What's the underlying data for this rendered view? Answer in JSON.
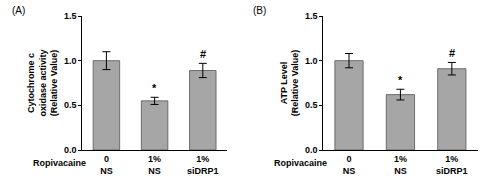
{
  "chart_data": [
    {
      "type": "bar",
      "panel": "(A)",
      "y_label": [
        "Cytochrome c",
        "oxidase activity",
        "(Relative Value)"
      ],
      "category_label": "Ropivacaine",
      "categories": [
        [
          "0",
          "NS"
        ],
        [
          "1%",
          "NS"
        ],
        [
          "1%",
          "siDRP1"
        ]
      ],
      "values": [
        1.0,
        0.55,
        0.89
      ],
      "errors": [
        0.1,
        0.04,
        0.08
      ],
      "annotations": [
        {
          "x": 1,
          "text": "*"
        },
        {
          "x": 2,
          "text": "#"
        }
      ],
      "color": "#a6a6a6",
      "ylim": [
        0,
        1.5
      ],
      "yticks": [
        {
          "value": 0,
          "label": "0.0"
        },
        {
          "value": 0.5,
          "label": "0.5"
        },
        {
          "value": 1,
          "label": "1.0"
        },
        {
          "value": 1.5,
          "label": "1.5"
        }
      ]
    },
    {
      "type": "bar",
      "panel": "(B)",
      "y_label": [
        "ATP Level",
        "(Relative Value)"
      ],
      "category_label": "Ropivacaine",
      "categories": [
        [
          "0",
          "NS"
        ],
        [
          "1%",
          "NS"
        ],
        [
          "1%",
          "siDRP1"
        ]
      ],
      "values": [
        1.0,
        0.62,
        0.91
      ],
      "errors": [
        0.08,
        0.06,
        0.07
      ],
      "annotations": [
        {
          "x": 1,
          "text": "*"
        },
        {
          "x": 2,
          "text": "#"
        }
      ],
      "color": "#a6a6a6",
      "ylim": [
        0,
        1.5
      ],
      "yticks": [
        {
          "value": 0,
          "label": "0.0"
        },
        {
          "value": 0.5,
          "label": "0.5"
        },
        {
          "value": 1,
          "label": "1.0"
        },
        {
          "value": 1.5,
          "label": "1.5"
        }
      ]
    }
  ]
}
